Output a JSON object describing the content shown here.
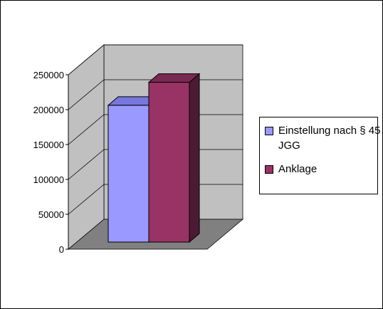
{
  "chart_data": {
    "type": "bar",
    "title": "",
    "xlabel": "",
    "ylabel": "",
    "ylim": [
      0,
      250000
    ],
    "yticks": [
      0,
      50000,
      100000,
      150000,
      200000,
      250000
    ],
    "grid": true,
    "three_d": true,
    "legend_position": "right",
    "series": [
      {
        "name": "Einstellung nach § 45 JGG",
        "value": 196000,
        "color": "#9999ff",
        "side_color": "#6666cc",
        "top_color": "#7777dd"
      },
      {
        "name": "Anklage",
        "value": 229000,
        "color": "#993366",
        "side_color": "#4d1a33",
        "top_color": "#7a2952"
      }
    ],
    "colors": {
      "wall": "#c0c0c0",
      "floor": "#808080",
      "grid": "#000000"
    }
  },
  "legend": {
    "items": [
      {
        "label": "Einstellung nach § 45 JGG"
      },
      {
        "label": "Anklage"
      }
    ]
  }
}
